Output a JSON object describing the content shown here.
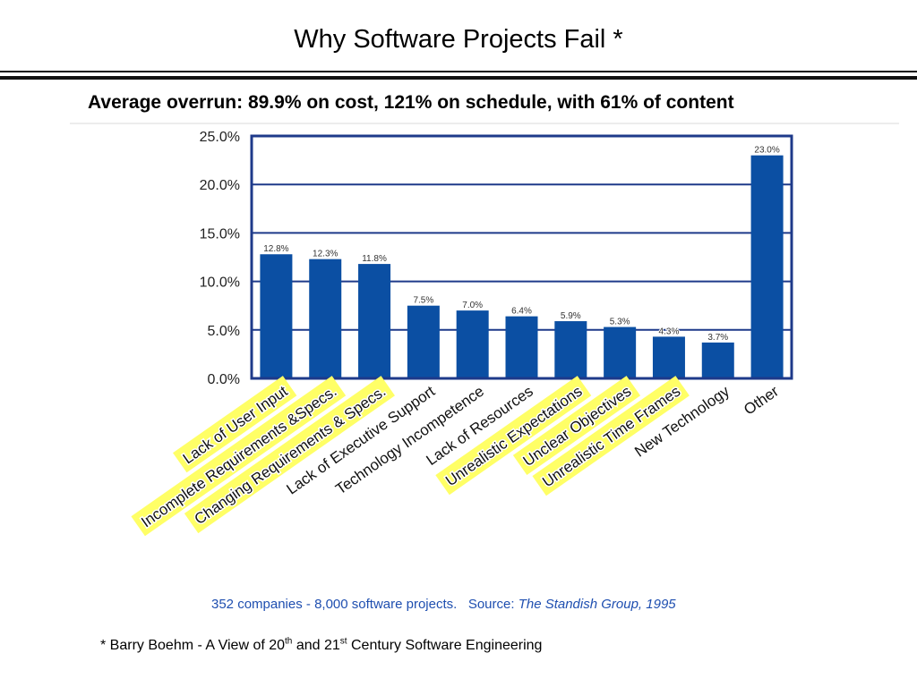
{
  "slide": {
    "title": "Why Software Projects Fail *",
    "subtitle": "Average overrun: 89.9% on cost, 121% on schedule, with 61% of content"
  },
  "colors": {
    "bar": "#0B4FA3",
    "frame": "#1E3A8A",
    "highlight": "#FFFF66",
    "source_text": "#1F4FB0"
  },
  "chart_data": {
    "type": "bar",
    "categories": [
      "Lack of User Input",
      "Incomplete Requirements &Specs.",
      "Changing Requirements & Specs.",
      "Lack of Executive Support",
      "Technology Incompetence",
      "Lack of Resources",
      "Unrealistic Expectations",
      "Unclear Objectives",
      "Unrealistic Time Frames",
      "New Technology",
      "Other"
    ],
    "values": [
      12.8,
      12.3,
      11.8,
      7.5,
      7.0,
      6.4,
      5.9,
      5.3,
      4.3,
      3.7,
      23.0
    ],
    "value_labels": [
      "12.8%",
      "12.3%",
      "11.8%",
      "7.5%",
      "7.0%",
      "6.4%",
      "5.9%",
      "5.3%",
      "4.3%",
      "3.7%",
      "23.0%"
    ],
    "highlighted": [
      true,
      true,
      true,
      false,
      false,
      false,
      true,
      true,
      true,
      false,
      false
    ],
    "yticks": [
      "0.0%",
      "5.0%",
      "10.0%",
      "15.0%",
      "20.0%",
      "25.0%"
    ],
    "ylim": [
      0,
      25
    ],
    "grid": true,
    "title": "",
    "xlabel": "",
    "ylabel": ""
  },
  "source": {
    "prefix": "352 companies - 8,000 software projects.   Source: ",
    "citation": "The Standish Group, 1995"
  },
  "footnote": {
    "text1": "* Barry Boehm - A View of 20",
    "sup1": "th",
    "text2": " and 21",
    "sup2": "st",
    "text3": " Century Software Engineering"
  }
}
